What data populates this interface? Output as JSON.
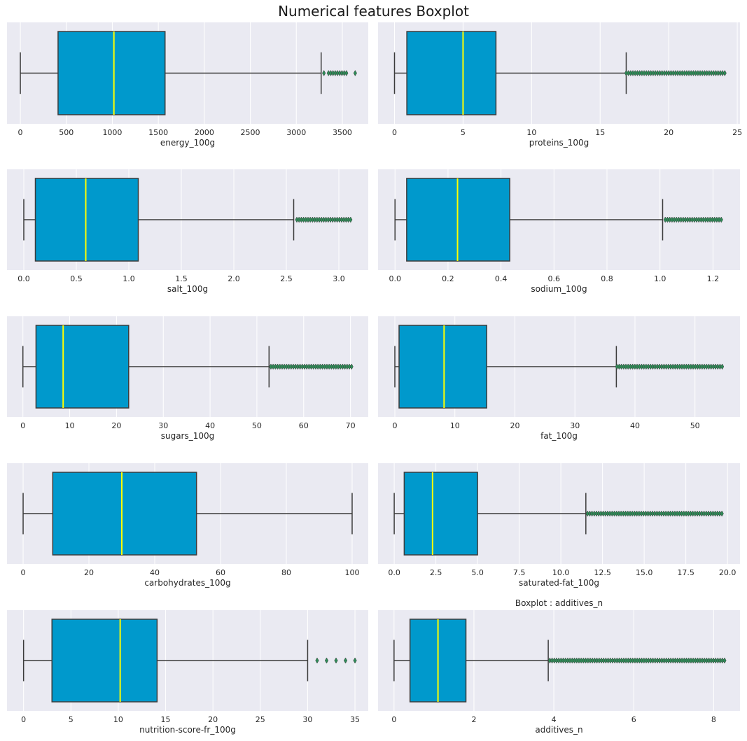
{
  "figure": {
    "title": "Numerical features Boxplot"
  },
  "colors": {
    "panel_bg": "#eaeaf2",
    "box_fill": "#0099cc",
    "edge": "#3b3b3b",
    "median": "#ffff00",
    "flier": "#2e8b57"
  },
  "chart_data": [
    {
      "type": "box",
      "title": "",
      "xlabel": "energy_100g",
      "xlim": [
        -145,
        3782
      ],
      "ticks": [
        0,
        500,
        1000,
        1500,
        2000,
        2500,
        3000,
        3500
      ],
      "tick_labels": [
        "0",
        "500",
        "1000",
        "1500",
        "2000",
        "2500",
        "3000",
        "3500"
      ],
      "whisker_low": 0,
      "q1": 410,
      "median": 1017,
      "q3": 1573,
      "whisker_high": 3270,
      "outliers_range": [
        3350,
        3560
      ],
      "outliers": [
        3300,
        3640
      ],
      "grid": true
    },
    {
      "type": "box",
      "title": "",
      "xlabel": "proteins_100g",
      "xlim": [
        -1.2,
        25.2
      ],
      "ticks": [
        0,
        5,
        10,
        15,
        20,
        25
      ],
      "tick_labels": [
        "0",
        "5",
        "10",
        "15",
        "20",
        "25"
      ],
      "whisker_low": 0,
      "q1": 0.9,
      "median": 5,
      "q3": 7.4,
      "whisker_high": 16.9,
      "outliers_range": [
        16.9,
        24.1
      ],
      "outliers": [],
      "grid": true
    },
    {
      "type": "box",
      "title": "",
      "xlabel": "salt_100g",
      "xlim": [
        -0.16,
        3.28
      ],
      "ticks": [
        0,
        0.5,
        1.0,
        1.5,
        2.0,
        2.5,
        3.0
      ],
      "tick_labels": [
        "0.0",
        "0.5",
        "1.0",
        "1.5",
        "2.0",
        "2.5",
        "3.0"
      ],
      "whisker_low": 0,
      "q1": 0.11,
      "median": 0.59,
      "q3": 1.09,
      "whisker_high": 2.57,
      "outliers_range": [
        2.6,
        3.12
      ],
      "outliers": [],
      "grid": true
    },
    {
      "type": "box",
      "title": "",
      "xlabel": "sodium_100g",
      "xlim": [
        -0.064,
        1.302
      ],
      "ticks": [
        0,
        0.2,
        0.4,
        0.6,
        0.8,
        1.0,
        1.2
      ],
      "tick_labels": [
        "0.0",
        "0.2",
        "0.4",
        "0.6",
        "0.8",
        "1.0",
        "1.2"
      ],
      "whisker_low": 0,
      "q1": 0.044,
      "median": 0.236,
      "q3": 0.433,
      "whisker_high": 1.01,
      "outliers_range": [
        1.02,
        1.236
      ],
      "outliers": [],
      "grid": true
    },
    {
      "type": "box",
      "title": "",
      "xlabel": "sugars_100g",
      "xlim": [
        -3.4,
        73.8
      ],
      "ticks": [
        0,
        10,
        20,
        30,
        40,
        50,
        60,
        70
      ],
      "tick_labels": [
        "0",
        "10",
        "20",
        "30",
        "40",
        "50",
        "60",
        "70"
      ],
      "whisker_low": 0,
      "q1": 2.8,
      "median": 8.6,
      "q3": 22.6,
      "whisker_high": 52.6,
      "outliers_range": [
        53,
        70.6
      ],
      "outliers": [],
      "grid": true
    },
    {
      "type": "box",
      "title": "",
      "xlabel": "fat_100g",
      "xlim": [
        -2.8,
        57.5
      ],
      "ticks": [
        0,
        10,
        20,
        30,
        40,
        50
      ],
      "tick_labels": [
        "0",
        "10",
        "20",
        "30",
        "40",
        "50"
      ],
      "whisker_low": 0,
      "q1": 0.7,
      "median": 8.2,
      "q3": 15.3,
      "whisker_high": 36.9,
      "outliers_range": [
        37,
        54.8
      ],
      "outliers": [],
      "grid": true
    },
    {
      "type": "box",
      "title": "",
      "xlabel": "carbohydrates_100g",
      "xlim": [
        -4.9,
        104.9
      ],
      "ticks": [
        0,
        20,
        40,
        60,
        80,
        100
      ],
      "tick_labels": [
        "0",
        "20",
        "40",
        "60",
        "80",
        "100"
      ],
      "whisker_low": 0,
      "q1": 9,
      "median": 30,
      "q3": 52.7,
      "whisker_high": 100,
      "outliers_range": null,
      "outliers": [],
      "grid": true
    },
    {
      "type": "box",
      "title": "",
      "xlabel": "saturated-fat_100g",
      "xlim": [
        -0.97,
        20.75
      ],
      "ticks": [
        0,
        2.5,
        5.0,
        7.5,
        10.0,
        12.5,
        15.0,
        17.5,
        20.0
      ],
      "tick_labels": [
        "0.0",
        "2.5",
        "5.0",
        "7.5",
        "10.0",
        "12.5",
        "15.0",
        "17.5",
        "20.0"
      ],
      "whisker_low": 0,
      "q1": 0.6,
      "median": 2.3,
      "q3": 5.0,
      "whisker_high": 11.5,
      "outliers_range": [
        11.6,
        19.8
      ],
      "outliers": [],
      "grid": true
    },
    {
      "type": "box",
      "title": "",
      "xlabel": "nutrition-score-fr_100g",
      "xlim": [
        -1.75,
        36.4
      ],
      "ticks": [
        0,
        5,
        10,
        15,
        20,
        25,
        30,
        35
      ],
      "tick_labels": [
        "0",
        "5",
        "10",
        "15",
        "20",
        "25",
        "30",
        "35"
      ],
      "whisker_low": 0,
      "q1": 3,
      "median": 10.2,
      "q3": 14.1,
      "whisker_high": 30,
      "outliers_range": null,
      "outliers": [
        31,
        32,
        33,
        34,
        35
      ],
      "grid": true
    },
    {
      "type": "box",
      "title": "Boxplot : additives_n",
      "xlabel": "additives_n",
      "xlim": [
        -0.4,
        8.66
      ],
      "ticks": [
        0,
        2,
        4,
        6,
        8
      ],
      "tick_labels": [
        "0",
        "2",
        "4",
        "6",
        "8"
      ],
      "whisker_low": 0,
      "q1": 0.4,
      "median": 1.1,
      "q3": 1.8,
      "whisker_high": 3.86,
      "outliers_range": [
        3.9,
        8.3
      ],
      "outliers": [],
      "grid": true
    }
  ]
}
